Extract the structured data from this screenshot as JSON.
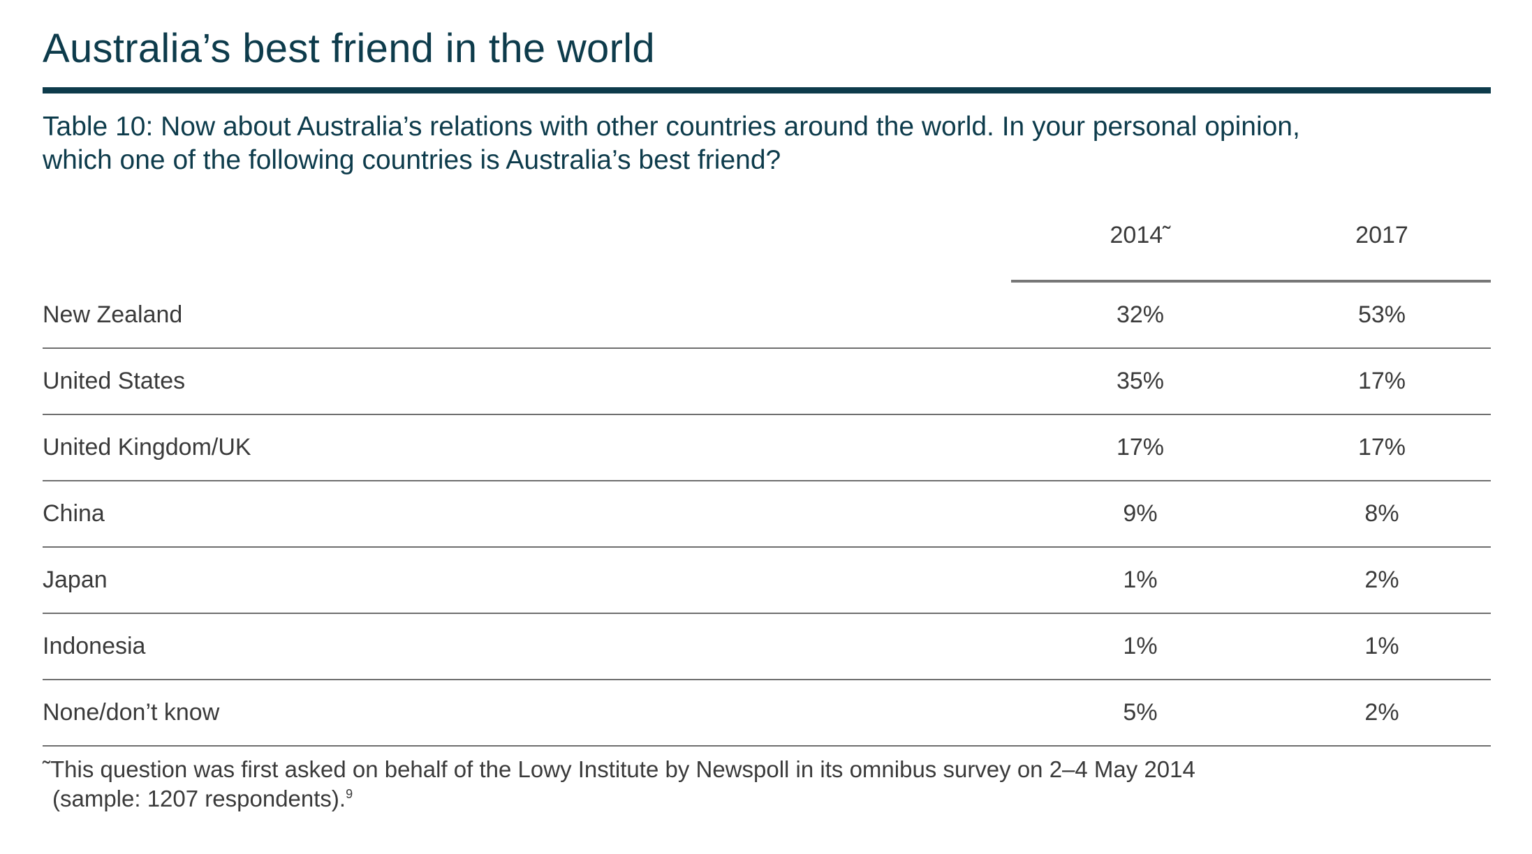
{
  "title": "Australia’s best friend in the world",
  "question": {
    "line1": "Table 10: Now about Australia’s relations with other countries around the world. In your personal opinion,",
    "line2": "which one of the following countries is Australia’s best friend?"
  },
  "columns": [
    "2014˜",
    "2017"
  ],
  "rows": [
    {
      "label": "New Zealand",
      "y2014": "32%",
      "y2017": "53%"
    },
    {
      "label": "United States",
      "y2014": "35%",
      "y2017": "17%"
    },
    {
      "label": "United Kingdom/UK",
      "y2014": "17%",
      "y2017": "17%"
    },
    {
      "label": "China",
      "y2014": "9%",
      "y2017": "8%"
    },
    {
      "label": "Japan",
      "y2014": "1%",
      "y2017": "2%"
    },
    {
      "label": "Indonesia",
      "y2014": "1%",
      "y2017": "1%"
    },
    {
      "label": "None/don’t know",
      "y2014": "5%",
      "y2017": "2%"
    }
  ],
  "footnote": {
    "line1": "˜This question was first asked on behalf of the Lowy Institute by Newspoll in its omnibus survey on 2–4 May 2014",
    "line2": "(sample: 1207 respondents).",
    "ref": "9"
  },
  "colors": {
    "heading": "#0d3b4b",
    "text": "#3a3a3a",
    "rule": "#6e6e6e"
  }
}
